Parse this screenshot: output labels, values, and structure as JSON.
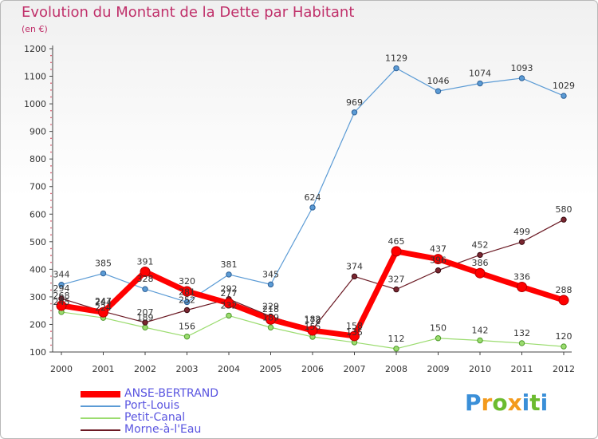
{
  "title": "Evolution du Montant de la Dette par Habitant",
  "unit": "(en €)",
  "logo": {
    "text": "Proxiti",
    "colors": [
      "#3a8fd8",
      "#f39a1c",
      "#6cbb2f",
      "#f39a1c",
      "#3a8fd8",
      "#6cbb2f",
      "#3a8fd8"
    ]
  },
  "chart_data": {
    "type": "line",
    "title": "Evolution du Montant de la Dette par Habitant",
    "ylabel": "(en €)",
    "xlabel": "",
    "categories": [
      "2000",
      "2001",
      "2002",
      "2003",
      "2004",
      "2005",
      "2006",
      "2007",
      "2008",
      "2009",
      "2010",
      "2011",
      "2012"
    ],
    "yticks": [
      100,
      200,
      300,
      400,
      500,
      600,
      700,
      800,
      900,
      1000,
      1100,
      1200
    ],
    "ylim": [
      100,
      1200
    ],
    "grid": false,
    "legend_position": "bottom-left",
    "series": [
      {
        "name": "ANSE-BERTRAND",
        "color": "#ff0000",
        "values": [
          268,
          244,
          391,
          320,
          277,
          218,
          178,
          158,
          465,
          437,
          386,
          336,
          288
        ],
        "labels": [
          "268",
          "244",
          "391",
          "320",
          "277",
          "218",
          "178",
          "158",
          "465",
          "437",
          "386",
          "336",
          "288"
        ]
      },
      {
        "name": "Port-Louis",
        "color": "#5b9bd5",
        "values": [
          344,
          385,
          328,
          281,
          381,
          345,
          624,
          969,
          1129,
          1046,
          1074,
          1093,
          1029
        ],
        "labels": [
          "344",
          "385",
          "328",
          "281",
          "381",
          "345",
          "624",
          "969",
          "1129",
          "1046",
          "1074",
          "1093",
          "1029"
        ]
      },
      {
        "name": "Petit-Canal",
        "color": "#9bdc6f",
        "values": [
          245,
          224,
          189,
          156,
          232,
          189,
          155,
          135,
          112,
          150,
          142,
          132,
          120
        ],
        "labels": [
          "245",
          "224",
          "189",
          "156",
          "232",
          "189",
          "155",
          "135",
          "112",
          "150",
          "142",
          "132",
          "120"
        ]
      },
      {
        "name": "Morne-à-l'Eau",
        "color": "#6b1a24",
        "values": [
          294,
          247,
          207,
          252,
          292,
          229,
          182,
          374,
          327,
          396,
          452,
          499,
          580
        ],
        "labels": [
          "294",
          "247",
          "207",
          "252",
          "292",
          "229",
          "182",
          "374",
          "327",
          "396",
          "452",
          "499",
          "580"
        ]
      }
    ]
  }
}
